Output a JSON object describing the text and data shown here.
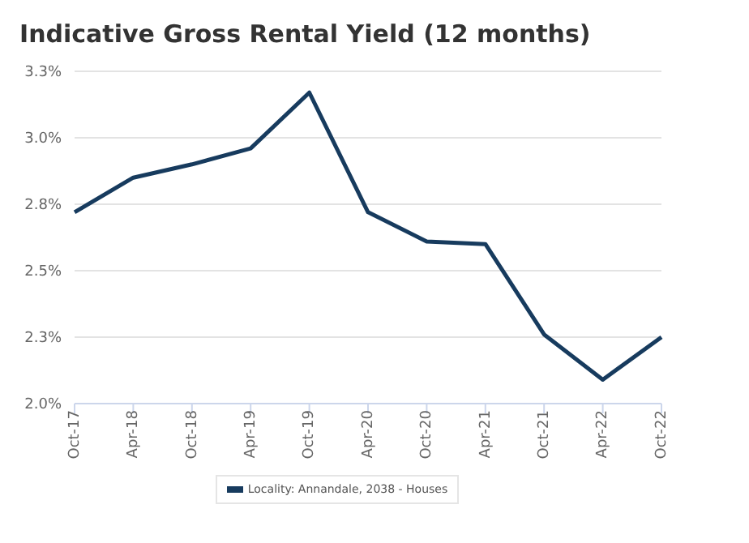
{
  "chart_data": {
    "type": "line",
    "title": "Indicative Gross Rental Yield (12 months)",
    "categories": [
      "Oct-17",
      "Apr-18",
      "Oct-18",
      "Apr-19",
      "Oct-19",
      "Apr-20",
      "Oct-20",
      "Apr-21",
      "Oct-21",
      "Apr-22",
      "Oct-22"
    ],
    "series": [
      {
        "name": "Locality: Annandale, 2038 - Houses",
        "color": "#173b5e",
        "values": [
          2.72,
          2.85,
          2.9,
          2.96,
          3.17,
          2.72,
          2.61,
          2.6,
          2.26,
          2.09,
          2.25
        ]
      }
    ],
    "ylim": [
      2.0,
      3.25
    ],
    "yticks": [
      {
        "value": 2.0,
        "label": "2.0%"
      },
      {
        "value": 2.25,
        "label": "2.3%"
      },
      {
        "value": 2.5,
        "label": "2.5%"
      },
      {
        "value": 2.75,
        "label": "2.8%"
      },
      {
        "value": 3.0,
        "label": "3.0%"
      },
      {
        "value": 3.25,
        "label": "3.3%"
      }
    ],
    "grid": "y",
    "legend": "bottom",
    "marker": "none",
    "line_style": "solid"
  }
}
